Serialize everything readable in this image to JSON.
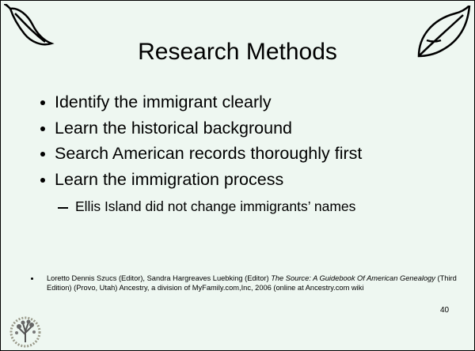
{
  "title": "Research Methods",
  "bullets": [
    "Identify the immigrant clearly",
    "Learn the historical background",
    "Search American records thoroughly first",
    "Learn the immigration process"
  ],
  "sub_bullets": [
    "Ellis Island did not change immigrants’ names"
  ],
  "reference": {
    "authors": "Loretto Dennis Szucs (Editor), Sandra Hargreaves Luebking (Editor) ",
    "book_title": "The Source: A Guidebook Of American Genealogy",
    "details": " (Third Edition) (Provo, Utah) Ancestry, a division of MyFamily.com,Inc, 2006 (online at Ancestry.com wiki"
  },
  "page_number": "40"
}
